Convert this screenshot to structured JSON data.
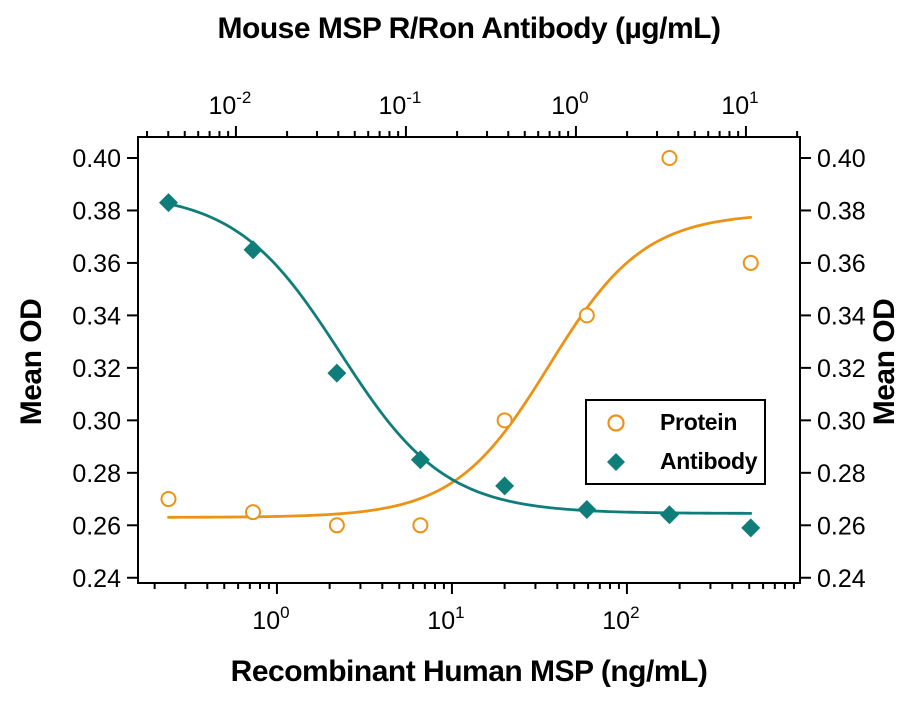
{
  "chart_data": {
    "type": "scatter",
    "title_top_axis": "Mouse MSP R/Ron Antibody (µg/mL)",
    "xlabel_bottom": "Recombinant Human MSP (ng/mL)",
    "ylabel_left": "Mean OD",
    "ylabel_right": "Mean OD",
    "background_color": "#ffffff",
    "axis_color": "#000000",
    "x_bottom_axis": {
      "scale": "log",
      "units": "ng/mL",
      "range_exp": [
        -0.794,
        2.989
      ],
      "major_ticks_exp": [
        0,
        1,
        2
      ]
    },
    "x_top_axis": {
      "scale": "log",
      "units": "µg/mL",
      "range_exp": [
        -2.576,
        1.318
      ],
      "major_ticks_exp": [
        -2,
        -1,
        0,
        1
      ]
    },
    "y_axis": {
      "range": [
        0.238,
        0.408
      ],
      "ticks": [
        0.24,
        0.26,
        0.28,
        0.3,
        0.32,
        0.34,
        0.36,
        0.38,
        0.4
      ],
      "tick_decimals": 2,
      "grid": false
    },
    "series": [
      {
        "name": "Protein",
        "marker": "open-circle",
        "color": "#EC9316",
        "x_ng_mL": [
          0.24,
          0.73,
          2.2,
          6.6,
          20,
          59,
          175,
          510
        ],
        "y_mean_od": [
          0.27,
          0.265,
          0.26,
          0.26,
          0.3,
          0.34,
          0.4,
          0.36
        ],
        "fit": {
          "type": "hill-rising",
          "bottom": 0.263,
          "top": 0.379,
          "ec50": 36,
          "hill": 1.6,
          "x_range": [
            0.24,
            510
          ]
        }
      },
      {
        "name": "Antibody",
        "marker": "filled-diamond",
        "color": "#0F7E7B",
        "x_ng_mL": [
          0.24,
          0.73,
          2.2,
          6.6,
          20,
          59,
          175,
          510
        ],
        "y_mean_od": [
          0.383,
          0.365,
          0.318,
          0.285,
          0.275,
          0.266,
          0.264,
          0.259
        ],
        "fit": {
          "type": "hill-falling",
          "top": 0.387,
          "bottom": 0.2645,
          "ic50": 2.3,
          "hill": 1.45,
          "x_range": [
            0.24,
            510
          ]
        }
      }
    ],
    "legend": {
      "position": "right-center",
      "items": [
        {
          "label": "Protein",
          "marker": "open-circle"
        },
        {
          "label": "Antibody",
          "marker": "filled-diamond"
        }
      ]
    }
  }
}
